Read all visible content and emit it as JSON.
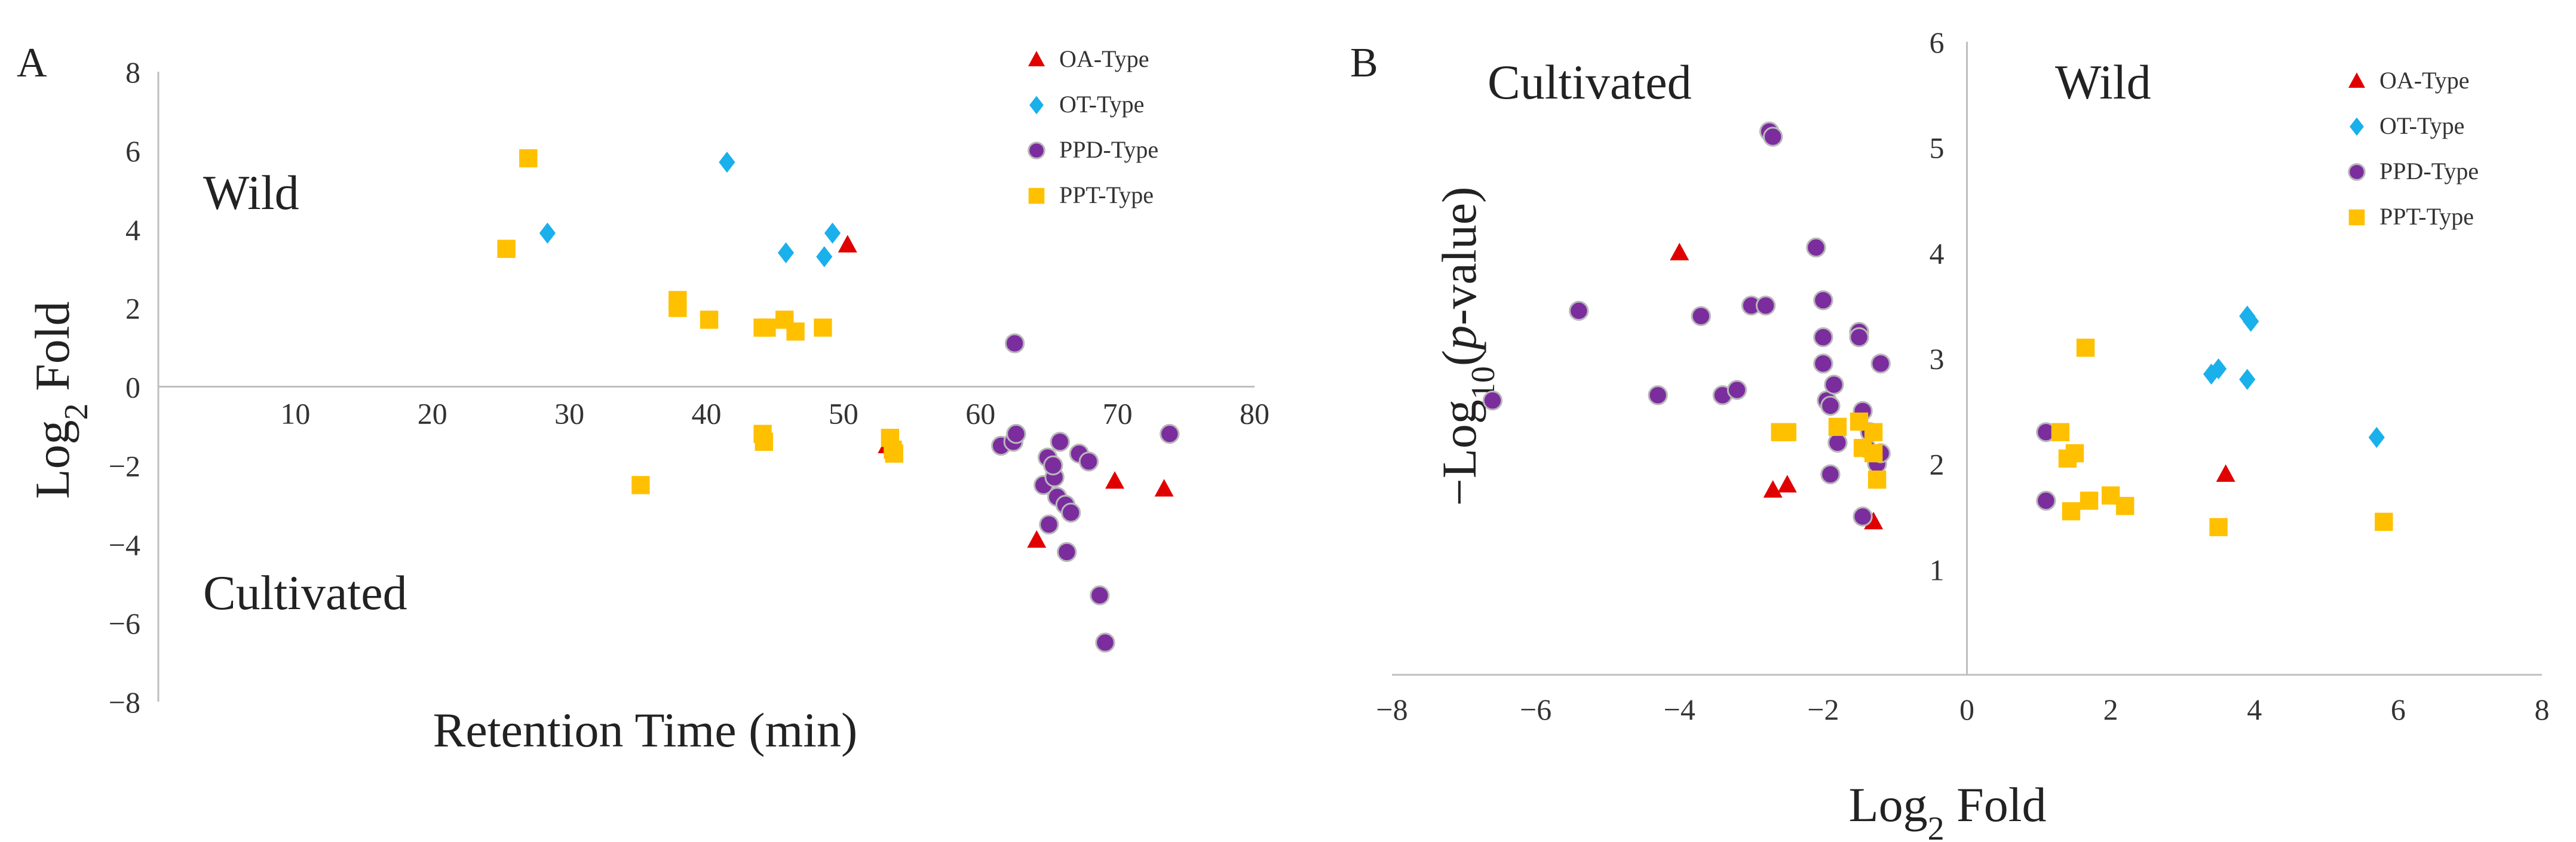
{
  "figure": {
    "panel_labels": [
      "A",
      "B"
    ]
  },
  "colors": {
    "OA": "#e00000",
    "OT": "#1ab0ec",
    "PPD": "#7b2d9e",
    "PPD_edge": "#b8b8b8",
    "PPT": "#ffc000",
    "axis": "#bfbfbf"
  },
  "chart_data": [
    {
      "type": "scatter",
      "panel": "A",
      "title": "",
      "xlabel": "Retention Time (min)",
      "ylabel": "Log2 Fold",
      "ylabel_main": "Log",
      "ylabel_sub": "2",
      "ylabel_tail": " Fold",
      "xlim": [
        0,
        80
      ],
      "ylim": [
        -8,
        8
      ],
      "x_ticks": [
        "10",
        "20",
        "30",
        "40",
        "50",
        "60",
        "70",
        "80"
      ],
      "y_ticks": [
        "8",
        "6",
        "4",
        "2",
        "0",
        "−2",
        "−4",
        "−6",
        "−8"
      ],
      "regions": [
        "Wild",
        "Cultivated"
      ],
      "legend_position": "top-right",
      "series": [
        {
          "name": "OA-Type",
          "marker": "triangle",
          "points": [
            [
              50.3,
              3.6
            ],
            [
              53.2,
              -1.5
            ],
            [
              64.1,
              -3.9
            ],
            [
              69.8,
              -2.4
            ],
            [
              73.4,
              -2.6
            ]
          ]
        },
        {
          "name": "OT-Type",
          "marker": "diamond",
          "points": [
            [
              28.4,
              3.9
            ],
            [
              41.5,
              5.7
            ],
            [
              45.8,
              3.4
            ],
            [
              48.6,
              3.3
            ],
            [
              49.2,
              3.9
            ]
          ]
        },
        {
          "name": "PPD-Type",
          "marker": "circle",
          "points": [
            [
              62.5,
              1.1
            ],
            [
              61.5,
              -1.5
            ],
            [
              62.4,
              -1.4
            ],
            [
              62.6,
              -1.2
            ],
            [
              64.6,
              -2.5
            ],
            [
              64.9,
              -1.8
            ],
            [
              65.0,
              -3.5
            ],
            [
              65.4,
              -2.3
            ],
            [
              65.3,
              -2.0
            ],
            [
              65.6,
              -2.8
            ],
            [
              65.8,
              -1.4
            ],
            [
              66.2,
              -3.0
            ],
            [
              66.3,
              -4.2
            ],
            [
              66.6,
              -3.2
            ],
            [
              67.2,
              -1.7
            ],
            [
              67.9,
              -1.9
            ],
            [
              68.7,
              -5.3
            ],
            [
              69.1,
              -6.5
            ],
            [
              73.8,
              -1.2
            ]
          ]
        },
        {
          "name": "PPT-Type",
          "marker": "square",
          "points": [
            [
              25.4,
              3.5
            ],
            [
              27.0,
              5.8
            ],
            [
              35.2,
              -2.5
            ],
            [
              37.9,
              2.2
            ],
            [
              37.9,
              2.0
            ],
            [
              40.2,
              1.7
            ],
            [
              44.1,
              1.5
            ],
            [
              44.4,
              1.5
            ],
            [
              45.7,
              1.7
            ],
            [
              46.5,
              1.4
            ],
            [
              48.5,
              1.5
            ],
            [
              44.1,
              -1.2
            ],
            [
              44.2,
              -1.4
            ],
            [
              53.4,
              -1.3
            ],
            [
              53.6,
              -1.6
            ],
            [
              53.7,
              -1.7
            ]
          ]
        }
      ]
    },
    {
      "type": "scatter",
      "panel": "B",
      "title": "",
      "xlabel": "Log2 Fold",
      "xlabel_main": "Log",
      "xlabel_sub": "2",
      "xlabel_tail": " Fold",
      "ylabel": "−Log10(p-value)",
      "ylabel_pre": "−Log",
      "ylabel_sub": "10",
      "ylabel_open": "(",
      "ylabel_italic": "p",
      "ylabel_close": "-value)",
      "xlim": [
        -8,
        8
      ],
      "ylim": [
        0,
        6
      ],
      "x_ticks": [
        "−8",
        "−6",
        "−4",
        "−2",
        "0",
        "2",
        "4",
        "6",
        "8"
      ],
      "y_ticks": [
        "1",
        "2",
        "3",
        "4",
        "5",
        "6"
      ],
      "regions": [
        "Cultivated",
        "Wild"
      ],
      "legend_position": "top-right",
      "series": [
        {
          "name": "OA-Type",
          "marker": "triangle",
          "points": [
            [
              -4.0,
              4.0
            ],
            [
              -2.7,
              1.75
            ],
            [
              -2.5,
              1.8
            ],
            [
              -1.3,
              1.45
            ],
            [
              3.6,
              1.9
            ]
          ]
        },
        {
          "name": "OT-Type",
          "marker": "diamond",
          "points": [
            [
              3.4,
              2.85
            ],
            [
              3.5,
              2.9
            ],
            [
              3.9,
              3.4
            ],
            [
              3.95,
              3.35
            ],
            [
              3.9,
              2.8
            ],
            [
              5.7,
              2.25
            ]
          ]
        },
        {
          "name": "PPD-Type",
          "marker": "circle",
          "points": [
            [
              -6.6,
              2.6
            ],
            [
              -5.4,
              3.45
            ],
            [
              -4.3,
              2.65
            ],
            [
              -3.7,
              3.4
            ],
            [
              -3.4,
              2.65
            ],
            [
              -3.2,
              2.7
            ],
            [
              -3.0,
              3.5
            ],
            [
              -2.8,
              3.5
            ],
            [
              -2.75,
              5.15
            ],
            [
              -2.7,
              5.1
            ],
            [
              -2.1,
              4.05
            ],
            [
              -2.0,
              3.55
            ],
            [
              -2.0,
              3.2
            ],
            [
              -2.0,
              2.95
            ],
            [
              -1.95,
              2.6
            ],
            [
              -1.9,
              2.55
            ],
            [
              -1.9,
              1.9
            ],
            [
              -1.85,
              2.75
            ],
            [
              -1.8,
              2.2
            ],
            [
              -1.5,
              3.25
            ],
            [
              -1.5,
              3.2
            ],
            [
              -1.45,
              2.5
            ],
            [
              -1.4,
              2.15
            ],
            [
              -1.35,
              2.3
            ],
            [
              -1.25,
              2.0
            ],
            [
              -1.2,
              2.95
            ],
            [
              -1.2,
              2.1
            ],
            [
              -1.45,
              1.5
            ],
            [
              1.1,
              2.3
            ],
            [
              1.1,
              1.65
            ]
          ]
        },
        {
          "name": "PPT-Type",
          "marker": "square",
          "points": [
            [
              -2.6,
              2.3
            ],
            [
              -2.5,
              2.3
            ],
            [
              -1.8,
              2.35
            ],
            [
              -1.5,
              2.4
            ],
            [
              -1.45,
              2.15
            ],
            [
              -1.3,
              2.3
            ],
            [
              -1.3,
              2.1
            ],
            [
              -1.25,
              1.85
            ],
            [
              1.3,
              2.3
            ],
            [
              1.4,
              2.05
            ],
            [
              1.5,
              2.1
            ],
            [
              1.45,
              1.55
            ],
            [
              1.65,
              3.1
            ],
            [
              1.7,
              1.65
            ],
            [
              2.0,
              1.7
            ],
            [
              2.2,
              1.6
            ],
            [
              3.5,
              1.4
            ],
            [
              5.8,
              1.45
            ]
          ]
        }
      ]
    }
  ]
}
